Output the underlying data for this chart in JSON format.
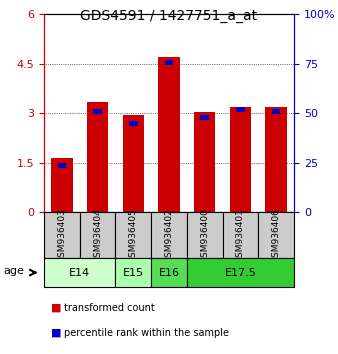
{
  "title": "GDS4591 / 1427751_a_at",
  "samples": [
    "GSM936403",
    "GSM936404",
    "GSM936405",
    "GSM936402",
    "GSM936400",
    "GSM936401",
    "GSM936406"
  ],
  "transformed_counts": [
    1.65,
    3.35,
    2.95,
    4.7,
    3.05,
    3.2,
    3.2
  ],
  "percentile_ranks": [
    25.0,
    52.0,
    46.0,
    77.0,
    49.0,
    53.0,
    52.0
  ],
  "age_groups": [
    {
      "label": "E14",
      "samples": [
        "GSM936403",
        "GSM936404"
      ],
      "color": "#ccffcc"
    },
    {
      "label": "E15",
      "samples": [
        "GSM936405"
      ],
      "color": "#aaffaa"
    },
    {
      "label": "E16",
      "samples": [
        "GSM936402"
      ],
      "color": "#55dd55"
    },
    {
      "label": "E17.5",
      "samples": [
        "GSM936400",
        "GSM936401",
        "GSM936406"
      ],
      "color": "#33cc33"
    }
  ],
  "bar_color_red": "#cc0000",
  "bar_color_blue": "#0000cc",
  "ylim_left": [
    0,
    6
  ],
  "ylim_right": [
    0,
    100
  ],
  "yticks_left": [
    0,
    1.5,
    3,
    4.5,
    6
  ],
  "ytick_labels_left": [
    "0",
    "1.5",
    "3",
    "4.5",
    "6"
  ],
  "yticks_right": [
    0,
    25,
    50,
    75,
    100
  ],
  "ytick_labels_right": [
    "0",
    "25",
    "50",
    "75",
    "100%"
  ],
  "grid_color": "#000000",
  "bg_plot": "#ffffff",
  "bg_label": "#cccccc",
  "bar_width": 0.6
}
